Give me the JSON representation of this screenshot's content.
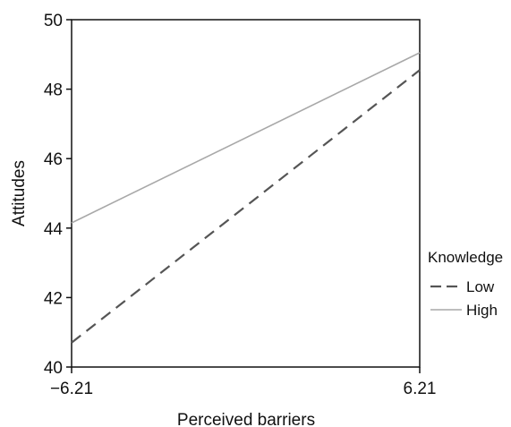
{
  "chart_data": {
    "type": "line",
    "title": "",
    "xlabel": "Perceived barriers",
    "ylabel": "Attitudes",
    "x": [
      -6.21,
      6.21
    ],
    "x_tick_labels": [
      "−6.21",
      "6.21"
    ],
    "xlim": [
      -6.21,
      6.21
    ],
    "ylim": [
      40,
      50
    ],
    "y_ticks": [
      40,
      42,
      44,
      46,
      48,
      50
    ],
    "y_tick_labels": [
      "40",
      "42",
      "44",
      "46",
      "48",
      "50"
    ],
    "grid": false,
    "legend": {
      "title": "Knowledge",
      "placement": "right"
    },
    "series": [
      {
        "name": "Low",
        "values": [
          40.7,
          48.55
        ],
        "color": "#555555",
        "style": "dashed"
      },
      {
        "name": "High",
        "values": [
          44.15,
          49.05
        ],
        "color": "#a8a8a8",
        "style": "solid"
      }
    ]
  }
}
